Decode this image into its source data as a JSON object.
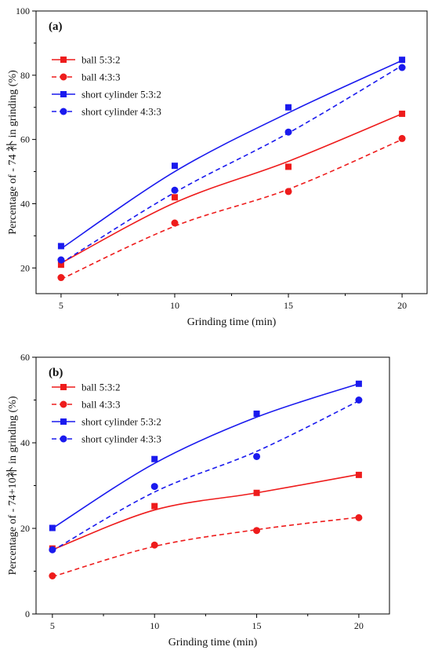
{
  "chart_data": [
    {
      "type": "line",
      "panel_label": "(a)",
      "xlabel": "Grinding time (min)",
      "ylabel": "Percentage of - 74 补  in grinding (%)",
      "xlim": [
        3.9,
        21.1
      ],
      "ylim": [
        12,
        100
      ],
      "x_ticks": [
        5,
        10,
        15,
        20
      ],
      "y_ticks": [
        20,
        40,
        60,
        80,
        100
      ],
      "x": [
        5,
        10,
        15,
        20
      ],
      "legend_position": "top-left",
      "grid": false,
      "series": [
        {
          "name": "ball 5:3:2",
          "values": [
            21.0,
            42.0,
            51.5,
            68.0
          ],
          "fit": [
            21.5,
            40.3,
            53.2,
            68.0
          ],
          "color": "#ee1c1c",
          "dashed": false,
          "marker": "square"
        },
        {
          "name": "ball 4:3:3",
          "values": [
            17.0,
            34.0,
            43.8,
            60.3
          ],
          "fit": [
            16.5,
            33.0,
            44.5,
            60.0
          ],
          "color": "#ee1c1c",
          "dashed": true,
          "marker": "circle"
        },
        {
          "name": "short cylinder 5:3:2",
          "values": [
            26.8,
            51.8,
            70.0,
            84.8
          ],
          "fit": [
            26.0,
            50.0,
            68.3,
            84.6
          ],
          "color": "#1a1aee",
          "dashed": false,
          "marker": "square"
        },
        {
          "name": "short cylinder 4:3:3",
          "values": [
            22.5,
            44.2,
            62.3,
            82.4
          ],
          "fit": [
            21.5,
            43.5,
            62.0,
            83.0
          ],
          "color": "#1a1aee",
          "dashed": true,
          "marker": "circle"
        }
      ]
    },
    {
      "type": "line",
      "panel_label": "(b)",
      "xlabel": "Grinding time (min)",
      "ylabel": "Percentage of - 74+10补  in grinding (%)",
      "xlim": [
        4.2,
        21.5
      ],
      "ylim": [
        0,
        60
      ],
      "x_ticks": [
        5,
        10,
        15,
        20
      ],
      "y_ticks": [
        0,
        20,
        40,
        60
      ],
      "x": [
        5,
        10,
        15,
        20
      ],
      "legend_position": "top-left",
      "grid": false,
      "series": [
        {
          "name": "ball 5:3:2",
          "values": [
            15.3,
            25.2,
            28.3,
            32.5
          ],
          "fit": [
            15.0,
            24.3,
            28.3,
            32.6
          ],
          "color": "#ee1c1c",
          "dashed": false,
          "marker": "square"
        },
        {
          "name": "ball 4:3:3",
          "values": [
            8.9,
            16.1,
            19.5,
            22.5
          ],
          "fit": [
            8.7,
            15.8,
            19.7,
            22.6
          ],
          "color": "#ee1c1c",
          "dashed": true,
          "marker": "circle"
        },
        {
          "name": "short cylinder 5:3:2",
          "values": [
            20.1,
            36.2,
            46.8,
            53.8
          ],
          "fit": [
            20.0,
            35.2,
            46.0,
            53.8
          ],
          "color": "#1a1aee",
          "dashed": false,
          "marker": "square"
        },
        {
          "name": "short cylinder 4:3:3",
          "values": [
            15.0,
            29.8,
            36.8,
            50.0
          ],
          "fit": [
            14.8,
            28.5,
            38.0,
            49.8
          ],
          "color": "#1a1aee",
          "dashed": true,
          "marker": "circle"
        }
      ]
    }
  ]
}
